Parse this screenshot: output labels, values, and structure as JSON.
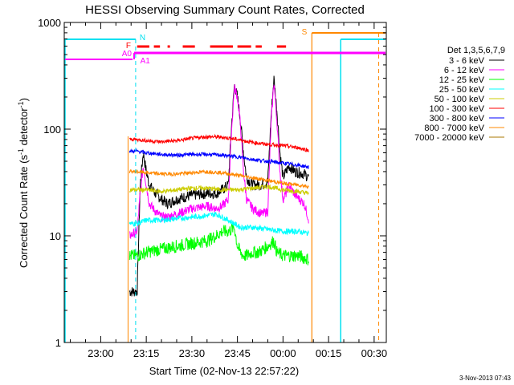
{
  "chart_data": {
    "type": "line",
    "title": "HESSI Observing Summary Count Rates, Corrected",
    "xlabel": "Start Time (02-Nov-13 22:57:22)",
    "ylabel_main": "Corrected Count Rate (s",
    "ylabel_sup1": "-1",
    "ylabel_mid": " detector",
    "ylabel_sup2": "-1",
    "ylabel_end": ")",
    "yscale": "log",
    "ylim": [
      1,
      1000
    ],
    "xlim_minutes": [
      -12,
      94
    ],
    "y_ticks": [
      {
        "v": 1,
        "label": "1"
      },
      {
        "v": 10,
        "label": "10"
      },
      {
        "v": 100,
        "label": "100"
      },
      {
        "v": 1000,
        "label": "1000"
      }
    ],
    "x_ticks": [
      {
        "v": 0,
        "label": "23:00"
      },
      {
        "v": 15,
        "label": "23:15"
      },
      {
        "v": 30,
        "label": "23:30"
      },
      {
        "v": 45,
        "label": "23:45"
      },
      {
        "v": 60,
        "label": "00:00"
      },
      {
        "v": 75,
        "label": "00:15"
      },
      {
        "v": 90,
        "label": "00:30"
      }
    ],
    "legend_title": "Det 1,3,5,6,7,9",
    "legend_position": "right",
    "timestamp": "3-Nov-2013 07:43",
    "series": [
      {
        "name": "3 - 6 keV",
        "color": "#000000",
        "x": [
          9.5,
          12,
          13,
          14,
          15,
          16,
          18,
          20,
          22,
          25,
          30,
          35,
          38,
          40,
          42,
          43,
          44,
          45,
          46,
          47,
          48,
          50,
          53,
          55,
          56,
          57,
          58,
          59,
          60,
          61,
          62,
          64,
          67,
          68.5
        ],
        "y": [
          3,
          3,
          30,
          60,
          40,
          30,
          25,
          22,
          20,
          22,
          24,
          25,
          25,
          27,
          30,
          100,
          260,
          200,
          120,
          60,
          35,
          30,
          30,
          32,
          120,
          300,
          150,
          60,
          35,
          40,
          45,
          40,
          38,
          35
        ]
      },
      {
        "name": "6 - 12 keV",
        "color": "#ff00ff",
        "x": [
          9.5,
          12,
          13,
          14,
          15,
          16,
          18,
          20,
          22,
          25,
          30,
          35,
          38,
          40,
          42,
          43,
          44,
          45,
          46,
          47,
          48,
          50,
          53,
          55,
          56,
          57,
          58,
          59,
          60,
          61,
          62,
          64,
          67,
          68.5
        ],
        "y": [
          10,
          11,
          25,
          45,
          30,
          20,
          17,
          15,
          15,
          16,
          18,
          19,
          18,
          19,
          22,
          90,
          250,
          200,
          110,
          40,
          22,
          18,
          16,
          17,
          100,
          280,
          120,
          40,
          22,
          25,
          30,
          24,
          20,
          14
        ]
      },
      {
        "name": "12 - 25 keV",
        "color": "#00ff00",
        "x": [
          9.5,
          12,
          15,
          20,
          25,
          30,
          35,
          38,
          40,
          42,
          44,
          45,
          46,
          47,
          48,
          50,
          52,
          55,
          57,
          58,
          60,
          62,
          65,
          68.5
        ],
        "y": [
          6.5,
          6.5,
          7,
          7.5,
          8,
          8.5,
          9,
          10,
          11,
          11,
          12,
          8,
          7,
          6.5,
          6.5,
          7,
          7,
          8,
          9,
          7,
          6.5,
          6.5,
          6.5,
          6
        ]
      },
      {
        "name": "25 - 50 keV",
        "color": "#00ffff",
        "x": [
          9.5,
          12,
          15,
          20,
          25,
          30,
          35,
          38,
          40,
          42,
          44,
          46,
          48,
          50,
          55,
          60,
          65,
          68.5
        ],
        "y": [
          13,
          13,
          14,
          14,
          14.5,
          15,
          15.5,
          16,
          15,
          14,
          13,
          12,
          12,
          12,
          11.5,
          11,
          11,
          10.5
        ]
      },
      {
        "name": "50 - 100 keV",
        "color": "#cccc00",
        "x": [
          9.5,
          12,
          15,
          20,
          25,
          30,
          35,
          40,
          45,
          50,
          55,
          60,
          65,
          68.5
        ],
        "y": [
          27,
          27,
          27,
          26,
          27,
          28,
          28,
          27,
          27,
          28,
          29,
          27,
          26,
          25
        ]
      },
      {
        "name": "100 - 300 keV",
        "color": "#ff0000",
        "x": [
          9.5,
          12,
          15,
          20,
          25,
          30,
          35,
          40,
          45,
          50,
          55,
          60,
          65,
          68.5
        ],
        "y": [
          80,
          80,
          78,
          76,
          78,
          82,
          85,
          84,
          80,
          75,
          72,
          70,
          67,
          63
        ]
      },
      {
        "name": "300 - 800 keV",
        "color": "#0000ff",
        "x": [
          9.5,
          12,
          15,
          20,
          25,
          30,
          35,
          40,
          45,
          50,
          55,
          60,
          65,
          68.5
        ],
        "y": [
          62,
          62,
          60,
          58,
          57,
          58,
          58,
          57,
          55,
          52,
          50,
          48,
          46,
          44
        ]
      },
      {
        "name": "800 - 7000 keV",
        "color": "#ff8800",
        "x": [
          9.5,
          12,
          15,
          20,
          25,
          30,
          35,
          40,
          45,
          50,
          55,
          60,
          65,
          68.5
        ],
        "y": [
          40,
          40,
          39,
          38,
          38,
          39,
          40,
          39,
          37,
          35,
          33,
          31,
          30,
          29
        ]
      },
      {
        "name": "7000 - 20000 keV",
        "color": "#aa7700",
        "x": [],
        "y": []
      }
    ],
    "markers": {
      "N_label": "N",
      "S_label": "S",
      "F_label": "F",
      "A0_label": "A0",
      "A1_label": "A1"
    }
  }
}
